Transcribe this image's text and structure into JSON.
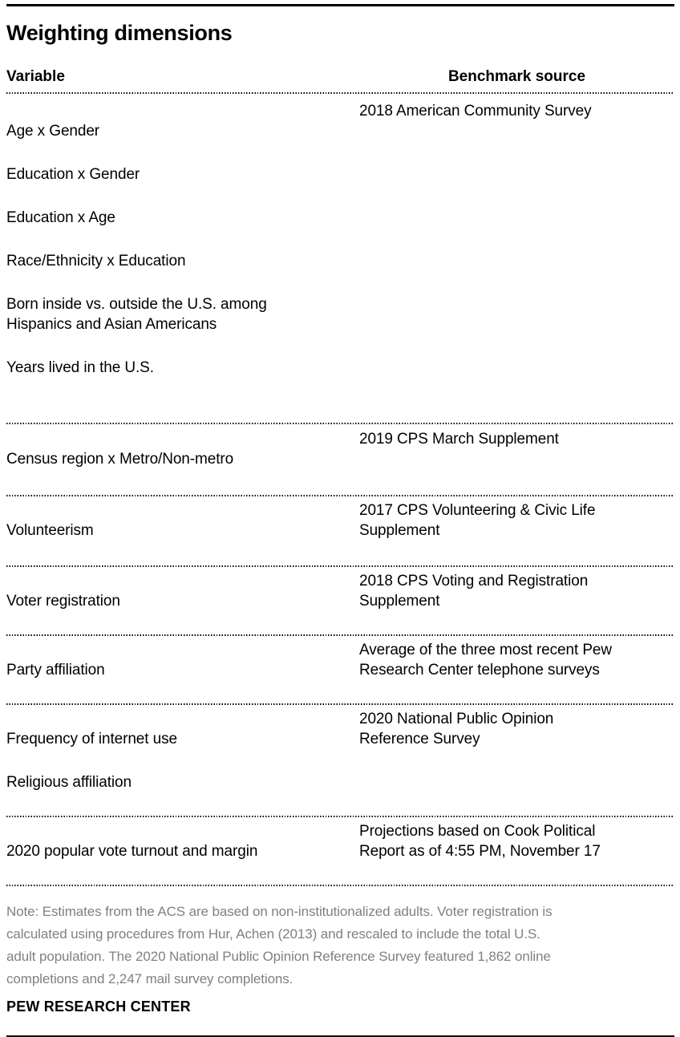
{
  "title": "Weighting dimensions",
  "chart_data": {
    "type": "table",
    "title": "Weighting dimensions",
    "columns": [
      "Variable",
      "Benchmark source"
    ],
    "rows": [
      {
        "variables": [
          "Age x Gender",
          "Education x Gender",
          "Education x Age",
          "Race/Ethnicity x Education",
          "Born inside vs. outside the U.S. among\nHispanics and Asian Americans",
          "Years lived in the U.S."
        ],
        "benchmark": "2018 American Community Survey"
      },
      {
        "variables": [
          "Census region x Metro/Non-metro"
        ],
        "benchmark": "2019 CPS March Supplement"
      },
      {
        "variables": [
          "Volunteerism"
        ],
        "benchmark": "2017 CPS Volunteering & Civic Life\nSupplement"
      },
      {
        "variables": [
          "Voter registration"
        ],
        "benchmark": "2018 CPS Voting and Registration\nSupplement"
      },
      {
        "variables": [
          "Party affiliation"
        ],
        "benchmark": "Average of the three most recent Pew\nResearch Center telephone surveys"
      },
      {
        "variables": [
          "Frequency of internet use",
          "Religious affiliation"
        ],
        "benchmark": "2020 National Public Opinion\nReference Survey"
      },
      {
        "variables": [
          "2020 popular vote turnout and margin"
        ],
        "benchmark": "Projections based on Cook Political\nReport as of 4:55 PM, November 17"
      }
    ],
    "note": "Note: Estimates from the ACS are based on non-institutionalized adults. Voter registration is\ncalculated using procedures from Hur, Achen (2013) and rescaled to include the total U.S.\nadult population. The 2020 National Public Opinion Reference Survey featured 1,862 online\ncompletions and 2,247 mail survey completions.",
    "source": "PEW RESEARCH CENTER",
    "layout": {
      "grid": "dotted horizontal rules between rows",
      "legend_position": "none"
    }
  },
  "colors": {
    "text": "#000000",
    "note_gray": "#808080",
    "rule": "#000000",
    "background": "#ffffff"
  }
}
